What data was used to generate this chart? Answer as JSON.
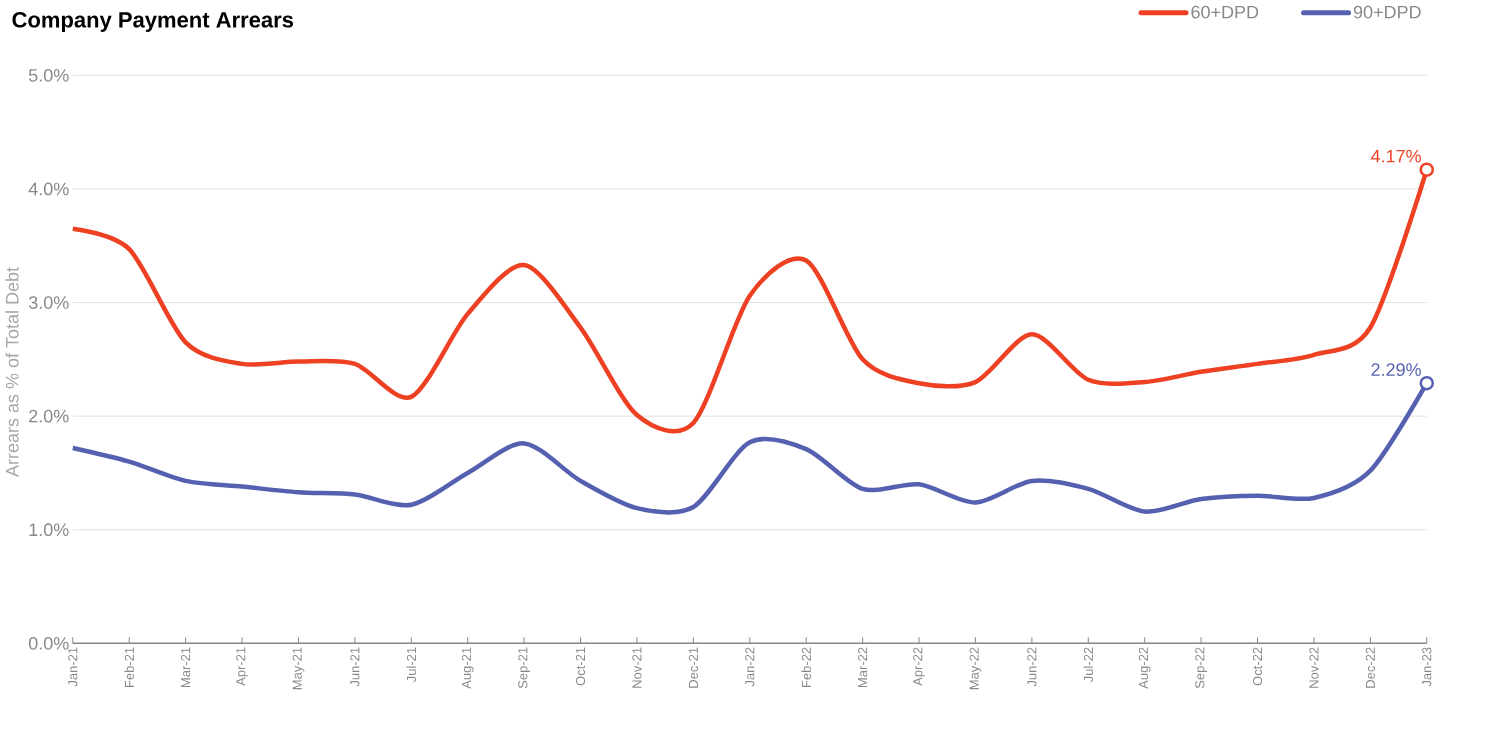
{
  "chart_data": {
    "type": "line",
    "title": "Company Payment Arrears",
    "ylabel": "Arrears as % of Total Debt",
    "categories": [
      "Jan-21",
      "Feb-21",
      "Mar-21",
      "Apr-21",
      "May-21",
      "Jun-21",
      "Jul-21",
      "Aug-21",
      "Sep-21",
      "Oct-21",
      "Nov-21",
      "Dec-21",
      "Jan-22",
      "Feb-22",
      "Mar-22",
      "Apr-22",
      "May-22",
      "Jun-22",
      "Jul-22",
      "Aug-22",
      "Sep-22",
      "Oct-22",
      "Nov-22",
      "Dec-22",
      "Jan-23"
    ],
    "series": [
      {
        "name": "60+DPD",
        "color": "#ee4123",
        "values": [
          3.65,
          3.47,
          2.65,
          2.46,
          2.48,
          2.46,
          2.17,
          2.9,
          3.33,
          2.78,
          2.01,
          1.94,
          3.06,
          3.37,
          2.5,
          2.29,
          2.3,
          2.72,
          2.32,
          2.3,
          2.39,
          2.46,
          2.54,
          2.78,
          4.17
        ],
        "value_labels": [
          null,
          null,
          null,
          null,
          null,
          null,
          null,
          null,
          null,
          null,
          null,
          null,
          null,
          null,
          null,
          null,
          null,
          null,
          null,
          null,
          null,
          null,
          null,
          null,
          "4.17%"
        ]
      },
      {
        "name": "90+DPD",
        "color": "#5561b0",
        "values": [
          1.72,
          1.6,
          1.43,
          1.38,
          1.33,
          1.31,
          1.22,
          1.5,
          1.76,
          1.43,
          1.19,
          1.2,
          1.77,
          1.71,
          1.36,
          1.4,
          1.24,
          1.43,
          1.36,
          1.16,
          1.27,
          1.3,
          1.28,
          1.52,
          2.29
        ],
        "value_labels": [
          null,
          null,
          null,
          null,
          null,
          null,
          null,
          null,
          null,
          null,
          null,
          null,
          null,
          null,
          null,
          null,
          null,
          null,
          null,
          null,
          null,
          null,
          null,
          null,
          "2.29%"
        ]
      }
    ],
    "ylim": [
      0,
      5
    ],
    "yticks": [
      {
        "value": 0,
        "label": "0.0%"
      },
      {
        "value": 1,
        "label": "1.0%"
      },
      {
        "value": 2,
        "label": "2.0%"
      },
      {
        "value": 3,
        "label": "3.0%"
      },
      {
        "value": 4,
        "label": "4.0%"
      },
      {
        "value": 5,
        "label": "5.0%"
      }
    ],
    "grid": "y",
    "legend": "top right"
  }
}
